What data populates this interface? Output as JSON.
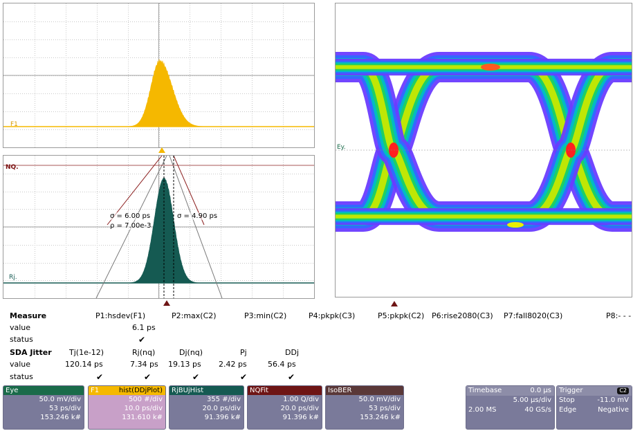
{
  "upper_panel": {
    "trace_tag": "F1"
  },
  "lower_panel": {
    "trace_tag_top": "NQ.",
    "trace_tag_bottom": "Rj.",
    "sigma_left": "σ = 6.00 ps",
    "rho_left": "ρ = 7.00e-3",
    "sigma_right": "σ = 4.90 ps"
  },
  "eye_panel": {
    "trace_tag": "Ey."
  },
  "measure": {
    "title": "Measure",
    "row_labels": [
      "value",
      "status"
    ],
    "params": [
      {
        "name": "P1:hsdev(F1)",
        "value": "6.1 ps",
        "status": "✔"
      },
      {
        "name": "P2:max(C2)",
        "value": "",
        "status": ""
      },
      {
        "name": "P3:min(C2)",
        "value": "",
        "status": ""
      },
      {
        "name": "P4:pkpk(C3)",
        "value": "",
        "status": ""
      },
      {
        "name": "P5:pkpk(C2)",
        "value": "",
        "status": ""
      },
      {
        "name": "P6:rise2080(C3)",
        "value": "",
        "status": ""
      },
      {
        "name": "P7:fall8020(C3)",
        "value": "",
        "status": ""
      },
      {
        "name": "P8:- - -",
        "value": "",
        "status": ""
      }
    ]
  },
  "sda_jitter": {
    "title": "SDA Jitter",
    "row_labels": [
      "value",
      "status"
    ],
    "columns": [
      {
        "name": "Tj(1e-12)",
        "value": "120.14 ps",
        "status": "✔"
      },
      {
        "name": "Rj(nq)",
        "value": "7.34 ps",
        "status": "✔"
      },
      {
        "name": "Dj(nq)",
        "value": "19.13 ps",
        "status": "✔"
      },
      {
        "name": "Pj",
        "value": "2.42 ps",
        "status": "✔"
      },
      {
        "name": "DDj",
        "value": "56.4 ps",
        "status": "✔"
      }
    ]
  },
  "descriptors": [
    {
      "label": "Eye",
      "extra": "",
      "color": "#1a6b4a",
      "lines": [
        "50.0 mV/div",
        "53 ps/div",
        "153.246 k#"
      ]
    },
    {
      "label": "F1",
      "extra": "hist(DDjPlot)",
      "color": "#f5b800",
      "lines": [
        "500 #/div",
        "10.0 ps/div",
        "131.610 k#"
      ]
    },
    {
      "label": "RjBUjHist",
      "extra": "",
      "color": "#155a52",
      "lines": [
        "355 #/div",
        "20.0 ps/div",
        "91.396 k#"
      ]
    },
    {
      "label": "NQFit",
      "extra": "",
      "color": "#6e1515",
      "lines": [
        "1.00 Q/div",
        "20.0 ps/div",
        "91.396 k#"
      ]
    },
    {
      "label": "IsoBER",
      "extra": "",
      "color": "#5a3838",
      "lines": [
        "50.0 mV/div",
        "53 ps/div",
        "153.246 k#"
      ]
    }
  ],
  "timebase": {
    "label": "Timebase",
    "offset": "0.0 µs",
    "per_div": "5.00 µs/div",
    "samples": "2.00 MS",
    "rate": "40 GS/s"
  },
  "trigger": {
    "label": "Trigger",
    "channel": "C2",
    "mode": "Stop",
    "level": "-11.0 mV",
    "type": "Edge",
    "slope": "Negative"
  }
}
